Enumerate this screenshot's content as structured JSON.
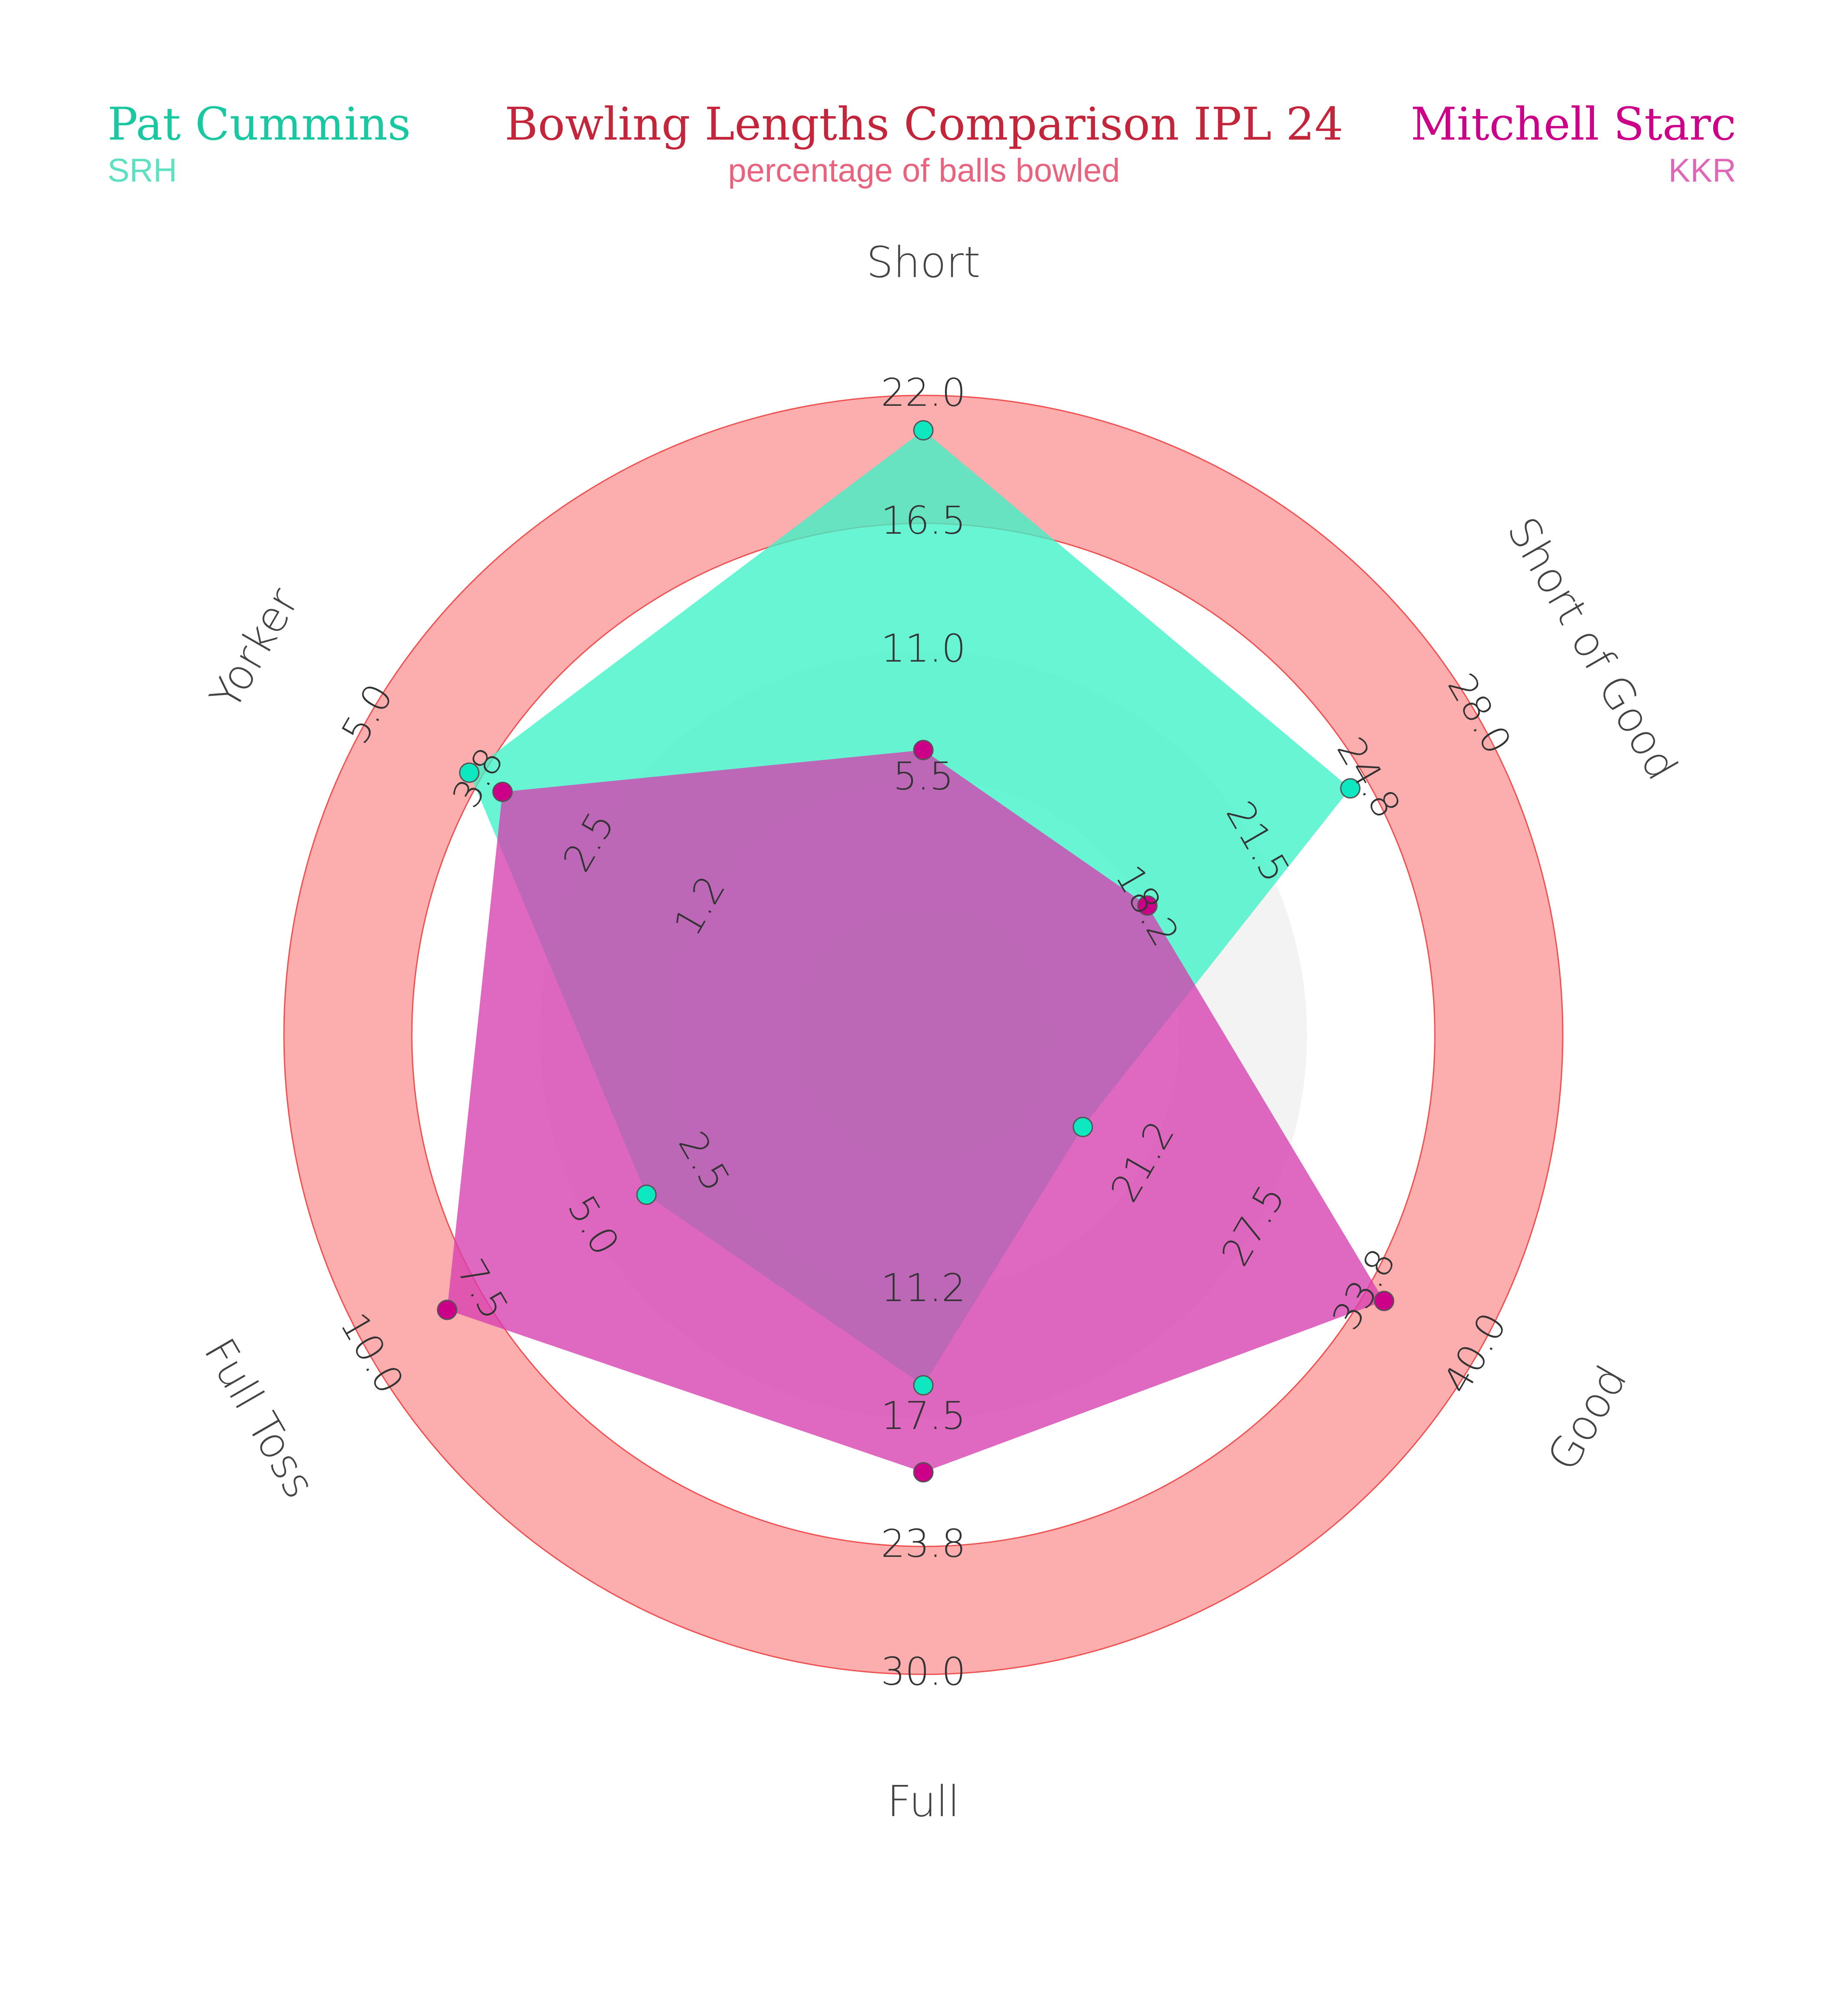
{
  "header": {
    "title": "Bowling Lengths Comparison IPL 24",
    "subtitle": "percentage of balls bowled",
    "player1": {
      "name": "Pat Cummins",
      "team": "SRH"
    },
    "player2": {
      "name": "Mitchell Starc",
      "team": "KKR"
    }
  },
  "colors": {
    "title": "#c3263a",
    "subtitle": "#e8637e",
    "player1": "#19c8a0",
    "player1_team": "#5fe0c0",
    "player1_fill": "#3ef2c8",
    "player1_marker": "#0ee8c0",
    "player2": "#cc0088",
    "player2_team": "#e066b8",
    "player2_fill": "#d63fb0",
    "player2_marker": "#cc0088",
    "ring_band": "#fcadad",
    "ring_stroke": "#f05050",
    "inner_band": "#a0a0a0"
  },
  "chart_data": {
    "type": "radar",
    "title": "Bowling Lengths Comparison IPL 24",
    "subtitle": "percentage of balls bowled",
    "axes": [
      {
        "name": "Short",
        "ticks": [
          "5.5",
          "11.0",
          "16.5",
          "22.0"
        ],
        "range": [
          0,
          22.0
        ]
      },
      {
        "name": "Short of Good",
        "ticks": [
          "18.2",
          "21.5",
          "24.8",
          "28.0"
        ],
        "range": [
          14.9,
          28.0
        ]
      },
      {
        "name": "Good",
        "ticks": [
          "21.2",
          "27.5",
          "33.8",
          "40.0"
        ],
        "range": [
          15.0,
          40.0
        ]
      },
      {
        "name": "Full",
        "ticks": [
          "11.2",
          "17.5",
          "23.8",
          "30.0"
        ],
        "range": [
          5.0,
          30.0
        ]
      },
      {
        "name": "Full Toss",
        "ticks": [
          "2.5",
          "5.0",
          "7.5",
          "10.0"
        ],
        "range": [
          0,
          10.0
        ]
      },
      {
        "name": "Yorker",
        "ticks": [
          "1.2",
          "2.5",
          "3.8",
          "5.0"
        ],
        "range": [
          0,
          5.0
        ]
      }
    ],
    "series": [
      {
        "name": "Pat Cummins",
        "values": [
          20.8,
          25.0,
          22.2,
          18.7,
          5.0,
          4.1
        ]
      },
      {
        "name": "Mitchell Starc",
        "values": [
          9.8,
          20.2,
          35.8,
          22.1,
          8.6,
          3.8
        ]
      }
    ]
  }
}
